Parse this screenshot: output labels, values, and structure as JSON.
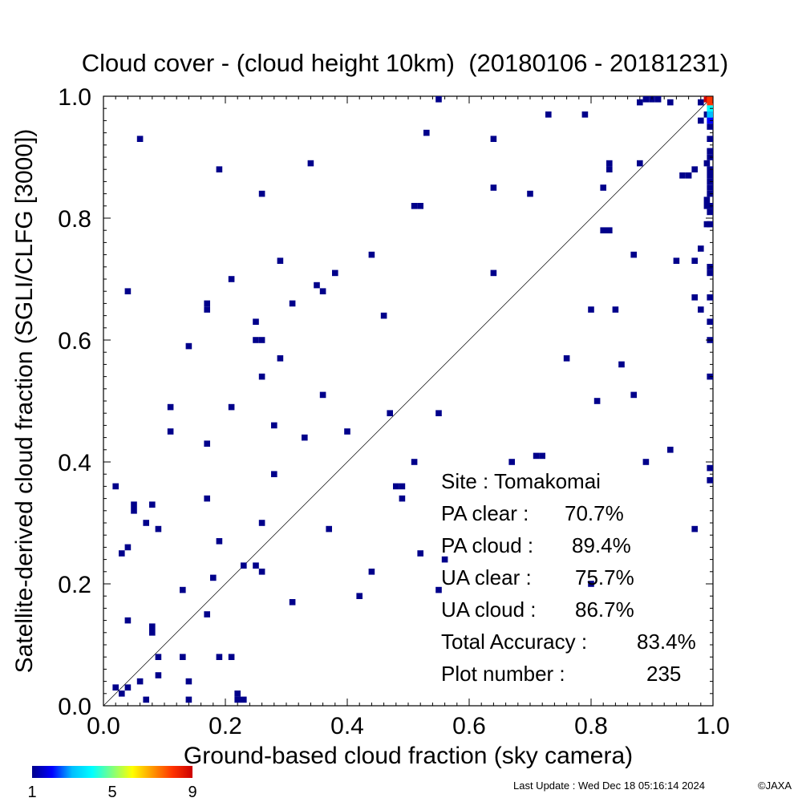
{
  "chart_data": {
    "type": "heatmap",
    "title": "Cloud cover - (cloud height 10km)  (20180106 - 20181231)",
    "xlabel": "Ground-based cloud fraction (sky camera)",
    "ylabel": "Satellite-derived cloud fraction (SGLI/CLFG [3000])",
    "xlim": [
      0.0,
      1.0
    ],
    "ylim": [
      0.0,
      1.0
    ],
    "x_ticks": [
      "0.0",
      "0.2",
      "0.4",
      "0.6",
      "0.8",
      "1.0"
    ],
    "y_ticks": [
      "0.0",
      "0.2",
      "0.4",
      "0.6",
      "0.8",
      "1.0"
    ],
    "reference_line": "y = x",
    "colorbar": {
      "min": 1,
      "max": 9,
      "tick_labels": [
        "1",
        "5",
        "9"
      ],
      "colors": [
        "#00008b",
        "#0000ff",
        "#00bfff",
        "#00ffff",
        "#7fff7f",
        "#ffff00",
        "#ff9900",
        "#ff3300",
        "#cc0000"
      ]
    },
    "stats": [
      {
        "label": "Site : Tomakomai",
        "value": ""
      },
      {
        "label": "PA clear :",
        "value": "70.7%"
      },
      {
        "label": "PA cloud :",
        "value": "89.4%"
      },
      {
        "label": "UA clear :",
        "value": "75.7%"
      },
      {
        "label": "UA cloud :",
        "value": "86.7%"
      },
      {
        "label": "Total Accuracy :",
        "value": "83.4%"
      },
      {
        "label": "Plot number :",
        "value": "235"
      }
    ],
    "points": [
      {
        "x": 0.02,
        "y": 0.03,
        "count": 1
      },
      {
        "x": 0.03,
        "y": 0.02,
        "count": 1
      },
      {
        "x": 0.04,
        "y": 0.03,
        "count": 1
      },
      {
        "x": 0.06,
        "y": 0.04,
        "count": 1
      },
      {
        "x": 0.07,
        "y": 0.01,
        "count": 1
      },
      {
        "x": 0.09,
        "y": 0.05,
        "count": 1
      },
      {
        "x": 0.09,
        "y": 0.08,
        "count": 1
      },
      {
        "x": 0.13,
        "y": 0.08,
        "count": 1
      },
      {
        "x": 0.14,
        "y": 0.04,
        "count": 1
      },
      {
        "x": 0.14,
        "y": 0.01,
        "count": 1
      },
      {
        "x": 0.19,
        "y": 0.08,
        "count": 1
      },
      {
        "x": 0.21,
        "y": 0.08,
        "count": 1
      },
      {
        "x": 0.22,
        "y": 0.02,
        "count": 1
      },
      {
        "x": 0.22,
        "y": 0.01,
        "count": 1
      },
      {
        "x": 0.23,
        "y": 0.01,
        "count": 1
      },
      {
        "x": 0.04,
        "y": 0.14,
        "count": 1
      },
      {
        "x": 0.08,
        "y": 0.12,
        "count": 1
      },
      {
        "x": 0.08,
        "y": 0.13,
        "count": 1
      },
      {
        "x": 0.13,
        "y": 0.19,
        "count": 1
      },
      {
        "x": 0.17,
        "y": 0.15,
        "count": 1
      },
      {
        "x": 0.18,
        "y": 0.21,
        "count": 1
      },
      {
        "x": 0.23,
        "y": 0.23,
        "count": 1
      },
      {
        "x": 0.25,
        "y": 0.23,
        "count": 1
      },
      {
        "x": 0.26,
        "y": 0.22,
        "count": 1
      },
      {
        "x": 0.03,
        "y": 0.25,
        "count": 1
      },
      {
        "x": 0.04,
        "y": 0.26,
        "count": 1
      },
      {
        "x": 0.07,
        "y": 0.3,
        "count": 1
      },
      {
        "x": 0.09,
        "y": 0.29,
        "count": 1
      },
      {
        "x": 0.19,
        "y": 0.27,
        "count": 1
      },
      {
        "x": 0.02,
        "y": 0.36,
        "count": 1
      },
      {
        "x": 0.05,
        "y": 0.32,
        "count": 1
      },
      {
        "x": 0.05,
        "y": 0.33,
        "count": 1
      },
      {
        "x": 0.08,
        "y": 0.33,
        "count": 1
      },
      {
        "x": 0.17,
        "y": 0.34,
        "count": 1
      },
      {
        "x": 0.26,
        "y": 0.3,
        "count": 1
      },
      {
        "x": 0.28,
        "y": 0.38,
        "count": 1
      },
      {
        "x": 0.17,
        "y": 0.43,
        "count": 1
      },
      {
        "x": 0.11,
        "y": 0.45,
        "count": 1
      },
      {
        "x": 0.11,
        "y": 0.49,
        "count": 1
      },
      {
        "x": 0.21,
        "y": 0.49,
        "count": 1
      },
      {
        "x": 0.28,
        "y": 0.46,
        "count": 1
      },
      {
        "x": 0.14,
        "y": 0.59,
        "count": 1
      },
      {
        "x": 0.26,
        "y": 0.54,
        "count": 1
      },
      {
        "x": 0.29,
        "y": 0.57,
        "count": 1
      },
      {
        "x": 0.25,
        "y": 0.6,
        "count": 1
      },
      {
        "x": 0.26,
        "y": 0.6,
        "count": 1
      },
      {
        "x": 0.25,
        "y": 0.63,
        "count": 1
      },
      {
        "x": 0.17,
        "y": 0.65,
        "count": 1
      },
      {
        "x": 0.17,
        "y": 0.66,
        "count": 1
      },
      {
        "x": 0.04,
        "y": 0.68,
        "count": 1
      },
      {
        "x": 0.21,
        "y": 0.7,
        "count": 1
      },
      {
        "x": 0.29,
        "y": 0.73,
        "count": 1
      },
      {
        "x": 0.31,
        "y": 0.66,
        "count": 1
      },
      {
        "x": 0.35,
        "y": 0.69,
        "count": 1
      },
      {
        "x": 0.36,
        "y": 0.68,
        "count": 1
      },
      {
        "x": 0.38,
        "y": 0.71,
        "count": 1
      },
      {
        "x": 0.44,
        "y": 0.74,
        "count": 1
      },
      {
        "x": 0.46,
        "y": 0.64,
        "count": 1
      },
      {
        "x": 0.19,
        "y": 0.88,
        "count": 1
      },
      {
        "x": 0.26,
        "y": 0.84,
        "count": 1
      },
      {
        "x": 0.34,
        "y": 0.89,
        "count": 1
      },
      {
        "x": 0.06,
        "y": 0.93,
        "count": 1
      },
      {
        "x": 0.51,
        "y": 0.82,
        "count": 1
      },
      {
        "x": 0.52,
        "y": 0.82,
        "count": 1
      },
      {
        "x": 0.53,
        "y": 0.94,
        "count": 1
      },
      {
        "x": 0.55,
        "y": 1.0,
        "count": 1
      },
      {
        "x": 0.33,
        "y": 0.44,
        "count": 1
      },
      {
        "x": 0.36,
        "y": 0.51,
        "count": 1
      },
      {
        "x": 0.4,
        "y": 0.45,
        "count": 1
      },
      {
        "x": 0.47,
        "y": 0.48,
        "count": 1
      },
      {
        "x": 0.31,
        "y": 0.17,
        "count": 1
      },
      {
        "x": 0.37,
        "y": 0.29,
        "count": 1
      },
      {
        "x": 0.42,
        "y": 0.18,
        "count": 1
      },
      {
        "x": 0.44,
        "y": 0.22,
        "count": 1
      },
      {
        "x": 0.48,
        "y": 0.36,
        "count": 1
      },
      {
        "x": 0.49,
        "y": 0.36,
        "count": 1
      },
      {
        "x": 0.49,
        "y": 0.34,
        "count": 1
      },
      {
        "x": 0.51,
        "y": 0.4,
        "count": 1
      },
      {
        "x": 0.52,
        "y": 0.25,
        "count": 1
      },
      {
        "x": 0.55,
        "y": 0.48,
        "count": 1
      },
      {
        "x": 0.55,
        "y": 0.19,
        "count": 1
      },
      {
        "x": 0.56,
        "y": 0.24,
        "count": 1
      },
      {
        "x": 0.64,
        "y": 0.71,
        "count": 1
      },
      {
        "x": 0.64,
        "y": 0.85,
        "count": 1
      },
      {
        "x": 0.64,
        "y": 0.93,
        "count": 1
      },
      {
        "x": 0.67,
        "y": 0.4,
        "count": 1
      },
      {
        "x": 0.7,
        "y": 0.84,
        "count": 1
      },
      {
        "x": 0.71,
        "y": 0.41,
        "count": 1
      },
      {
        "x": 0.72,
        "y": 0.41,
        "count": 1
      },
      {
        "x": 0.73,
        "y": 0.97,
        "count": 1
      },
      {
        "x": 0.76,
        "y": 0.57,
        "count": 1
      },
      {
        "x": 0.79,
        "y": 0.97,
        "count": 1
      },
      {
        "x": 0.8,
        "y": 0.65,
        "count": 1
      },
      {
        "x": 0.8,
        "y": 0.2,
        "count": 1
      },
      {
        "x": 0.81,
        "y": 0.5,
        "count": 1
      },
      {
        "x": 0.82,
        "y": 0.78,
        "count": 1
      },
      {
        "x": 0.82,
        "y": 0.85,
        "count": 1
      },
      {
        "x": 0.83,
        "y": 0.78,
        "count": 1
      },
      {
        "x": 0.83,
        "y": 0.88,
        "count": 1
      },
      {
        "x": 0.83,
        "y": 0.89,
        "count": 1
      },
      {
        "x": 0.84,
        "y": 0.65,
        "count": 1
      },
      {
        "x": 0.85,
        "y": 0.56,
        "count": 1
      },
      {
        "x": 0.87,
        "y": 0.51,
        "count": 1
      },
      {
        "x": 0.87,
        "y": 0.74,
        "count": 1
      },
      {
        "x": 0.88,
        "y": 0.89,
        "count": 1
      },
      {
        "x": 0.89,
        "y": 0.4,
        "count": 1
      },
      {
        "x": 0.88,
        "y": 0.99,
        "count": 1
      },
      {
        "x": 0.89,
        "y": 1.0,
        "count": 1
      },
      {
        "x": 0.9,
        "y": 1.0,
        "count": 1
      },
      {
        "x": 0.91,
        "y": 1.0,
        "count": 1
      },
      {
        "x": 0.93,
        "y": 0.99,
        "count": 1
      },
      {
        "x": 0.93,
        "y": 0.42,
        "count": 1
      },
      {
        "x": 0.94,
        "y": 0.73,
        "count": 1
      },
      {
        "x": 0.95,
        "y": 0.87,
        "count": 1
      },
      {
        "x": 0.96,
        "y": 0.87,
        "count": 1
      },
      {
        "x": 0.97,
        "y": 0.88,
        "count": 1
      },
      {
        "x": 0.97,
        "y": 0.73,
        "count": 1
      },
      {
        "x": 0.97,
        "y": 0.67,
        "count": 1
      },
      {
        "x": 0.97,
        "y": 0.29,
        "count": 1
      },
      {
        "x": 0.98,
        "y": 0.65,
        "count": 1
      },
      {
        "x": 0.98,
        "y": 0.75,
        "count": 1
      },
      {
        "x": 0.98,
        "y": 0.96,
        "count": 1
      },
      {
        "x": 0.98,
        "y": 0.99,
        "count": 1
      },
      {
        "x": 0.99,
        "y": 0.79,
        "count": 1
      },
      {
        "x": 0.99,
        "y": 0.82,
        "count": 1
      },
      {
        "x": 0.99,
        "y": 0.83,
        "count": 1
      },
      {
        "x": 0.99,
        "y": 0.89,
        "count": 1
      },
      {
        "x": 0.99,
        "y": 0.97,
        "count": 1
      },
      {
        "x": 0.99,
        "y": 1.0,
        "count": 9
      },
      {
        "x": 1.0,
        "y": 1.0,
        "count": 8
      },
      {
        "x": 1.0,
        "y": 0.99,
        "count": 8
      },
      {
        "x": 1.0,
        "y": 0.98,
        "count": 4
      },
      {
        "x": 1.0,
        "y": 0.97,
        "count": 3
      },
      {
        "x": 1.0,
        "y": 0.96,
        "count": 2
      },
      {
        "x": 1.0,
        "y": 0.95,
        "count": 1
      },
      {
        "x": 1.0,
        "y": 0.93,
        "count": 1
      },
      {
        "x": 1.0,
        "y": 0.91,
        "count": 1
      },
      {
        "x": 1.0,
        "y": 0.9,
        "count": 1
      },
      {
        "x": 1.0,
        "y": 0.88,
        "count": 1
      },
      {
        "x": 1.0,
        "y": 0.87,
        "count": 1
      },
      {
        "x": 1.0,
        "y": 0.86,
        "count": 1
      },
      {
        "x": 1.0,
        "y": 0.85,
        "count": 1
      },
      {
        "x": 1.0,
        "y": 0.84,
        "count": 1
      },
      {
        "x": 1.0,
        "y": 0.82,
        "count": 1
      },
      {
        "x": 1.0,
        "y": 0.81,
        "count": 1
      },
      {
        "x": 1.0,
        "y": 0.79,
        "count": 1
      },
      {
        "x": 1.0,
        "y": 0.72,
        "count": 1
      },
      {
        "x": 1.0,
        "y": 0.71,
        "count": 1
      },
      {
        "x": 1.0,
        "y": 0.67,
        "count": 1
      },
      {
        "x": 1.0,
        "y": 0.63,
        "count": 1
      },
      {
        "x": 1.0,
        "y": 0.6,
        "count": 1
      },
      {
        "x": 1.0,
        "y": 0.54,
        "count": 1
      },
      {
        "x": 1.0,
        "y": 0.39,
        "count": 1
      },
      {
        "x": 1.0,
        "y": 0.37,
        "count": 1
      }
    ]
  },
  "footer": {
    "last_update": "Last Update : Wed Dec 18 05:16:14 2024",
    "credit": "©JAXA"
  }
}
